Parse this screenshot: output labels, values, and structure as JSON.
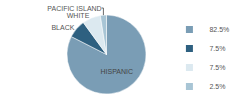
{
  "chart_data": {
    "type": "pie",
    "categories": [
      "HISPANIC",
      "BLACK",
      "WHITE",
      "PACIFIC ISLAND"
    ],
    "values": [
      82.5,
      7.5,
      7.5,
      2.5
    ],
    "value_labels": [
      "82.5%",
      "7.5%",
      "7.5%",
      "2.5%"
    ],
    "colors": [
      "#7a9db5",
      "#2e6080",
      "#dce9f0",
      "#a8c5d5"
    ],
    "legend": "right"
  }
}
